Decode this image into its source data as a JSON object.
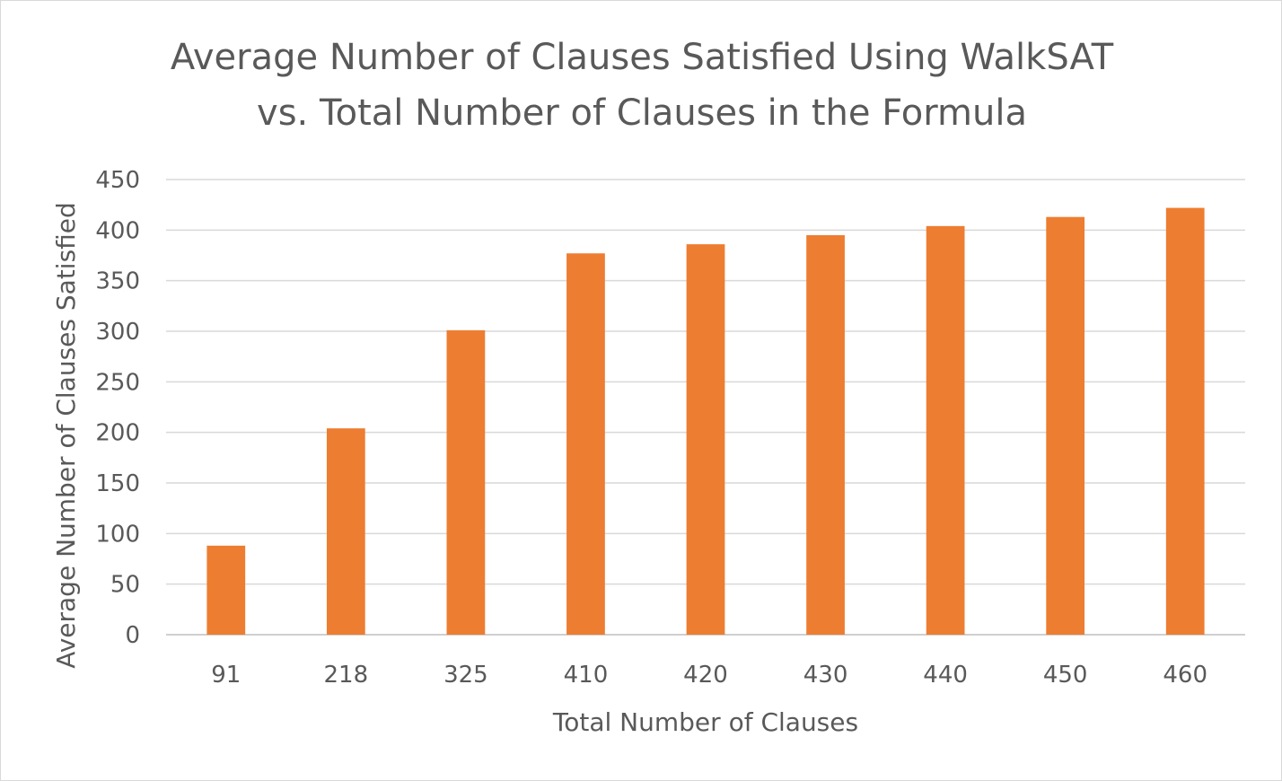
{
  "chart_data": {
    "type": "bar",
    "title_lines": [
      "Average Number of Clauses Satisfied Using WalkSAT",
      "vs. Total Number of Clauses in the Formula"
    ],
    "xlabel": "Total Number of Clauses",
    "ylabel": "Average Number of Clauses Satisfied",
    "categories": [
      "91",
      "218",
      "325",
      "410",
      "420",
      "430",
      "440",
      "450",
      "460"
    ],
    "series": [
      {
        "values": [
          88,
          204,
          301,
          377,
          386,
          395,
          404,
          413,
          422
        ]
      }
    ],
    "ylim": [
      0,
      450
    ],
    "yticks": [
      0,
      50,
      100,
      150,
      200,
      250,
      300,
      350,
      400,
      450
    ],
    "grid": true,
    "legend": "none",
    "bar_color": "#ED7D31"
  }
}
